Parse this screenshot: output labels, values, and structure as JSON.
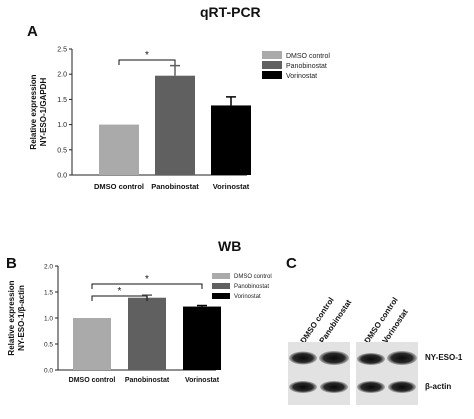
{
  "panels": {
    "a": {
      "letter": "A",
      "title": "qRT-PCR"
    },
    "b": {
      "letter": "B",
      "title": "WB"
    },
    "c": {
      "letter": "C"
    }
  },
  "chart_data": [
    {
      "type": "bar",
      "title": "qRT-PCR",
      "ylabel": [
        "Relative expression",
        "NY-ESO-1/GAPDH"
      ],
      "xlabel": "",
      "categories": [
        "DMSO control",
        "Panobinostat",
        "Vorinostat"
      ],
      "values": [
        1.0,
        1.97,
        1.38
      ],
      "errors": [
        0,
        0.2,
        0.17
      ],
      "colors": [
        "#aaaaaa",
        "#606060",
        "#000000"
      ],
      "ylim": [
        0,
        2.5
      ],
      "yticks": [
        "0.0",
        "0.5",
        "1.0",
        "1.5",
        "2.0",
        "2.5"
      ],
      "legend": {
        "placement": "top-right",
        "entries": [
          "DMSO control",
          "Panobinostat",
          "Vorinostat"
        ]
      },
      "significance": [
        {
          "from": 0,
          "to": 1,
          "label": "*"
        }
      ],
      "grid": false
    },
    {
      "type": "bar",
      "title": "WB",
      "ylabel": [
        "Relative expression",
        "NY-ESO-1/β-actin"
      ],
      "xlabel": "",
      "categories": [
        "DMSO control",
        "Panobinostat",
        "Vorinostat"
      ],
      "values": [
        1.0,
        1.39,
        1.22
      ],
      "errors": [
        0,
        0.05,
        0.02
      ],
      "colors": [
        "#aaaaaa",
        "#606060",
        "#000000"
      ],
      "ylim": [
        0,
        2.0
      ],
      "yticks": [
        "0.0",
        "0.5",
        "1.0",
        "1.5",
        "2.0"
      ],
      "legend": {
        "placement": "top-right",
        "entries": [
          "DMSO control",
          "Panobinostat",
          "Vorinostat"
        ]
      },
      "significance": [
        {
          "from": 0,
          "to": 1,
          "label": "*"
        },
        {
          "from": 0,
          "to": 2,
          "label": "*"
        }
      ],
      "grid": false
    }
  ],
  "blot": {
    "lane_labels": [
      "DMSO control",
      "Panobinostat",
      "DMSO control",
      "Vorinostat"
    ],
    "row_labels": [
      "NY-ESO-1",
      "β-actin"
    ]
  }
}
